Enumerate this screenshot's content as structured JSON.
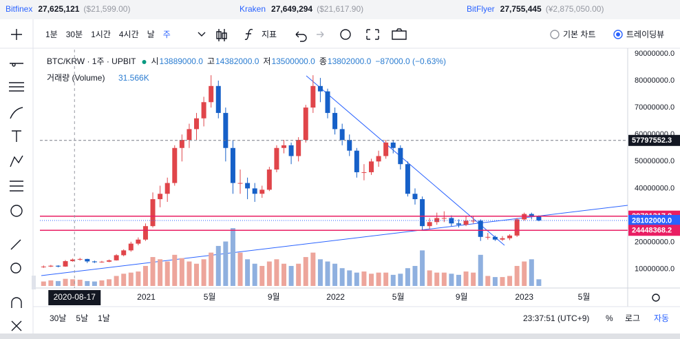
{
  "tickers": [
    {
      "exchange": "Bitfinex",
      "price": "27,625,121",
      "usd": "($21,599.00)"
    },
    {
      "exchange": "Kraken",
      "price": "27,649,294",
      "usd": "($21,617.90)"
    },
    {
      "exchange": "BitFlyer",
      "price": "27,755,445",
      "usd": "(¥2,875,050.00)"
    }
  ],
  "toolbar": {
    "intervals": [
      "1분",
      "30분",
      "1시간",
      "4시간",
      "날",
      "주"
    ],
    "active_interval": 5,
    "indicators": "지표",
    "chart_modes": [
      "기본 차트",
      "트레이딩뷰"
    ],
    "active_mode": 1
  },
  "chart_data": {
    "type": "candlestick",
    "symbol": "BTC/KRW · 1주 · UPBIT",
    "legend": [
      {
        "label": "시",
        "value": "13889000.0"
      },
      {
        "label": "고",
        "value": "14382000.0"
      },
      {
        "label": "저",
        "value": "13500000.0"
      },
      {
        "label": "종",
        "value": "13802000.0"
      }
    ],
    "change": "−87000.0 (−0.63%)",
    "volume_label": "거래량 (Volume)",
    "volume_value": "31.566K",
    "up_color": "#e0454a",
    "down_color": "#1660c8",
    "volume_up_color": "#eda59b",
    "volume_down_color": "#8fb0df",
    "open": [
      10800000,
      11000000,
      11300000,
      11000000,
      13000000,
      13600000,
      13800000,
      12900000,
      12600000,
      12800000,
      13300000,
      15200000,
      17000000,
      19500000,
      21000000,
      26000000,
      36000000,
      38000000,
      42000000,
      55000000,
      58000000,
      62000000,
      66000000,
      72000000,
      78000000,
      68000000,
      55000000,
      42000000,
      42000000,
      40000000,
      38000000,
      39500000,
      47000000,
      55000000,
      56000000,
      52000000,
      58000000,
      70000000,
      78000000,
      76000000,
      68000000,
      62000000,
      58000000,
      54000000,
      46000000,
      46000000,
      50000000,
      52000000,
      57000000,
      55000000,
      49000000,
      38000000,
      36000000,
      26000000,
      27500000,
      29000000,
      29000000,
      27000000,
      26500000,
      28000000,
      28000000,
      22000000,
      22000000,
      21000000,
      21500000,
      22500000,
      28500000,
      30500000,
      29500000
    ],
    "high": [
      11400000,
      11600000,
      11500000,
      13400000,
      14000000,
      14200000,
      13900000,
      13200000,
      13100000,
      13600000,
      15600000,
      17400000,
      20200000,
      21800000,
      27000000,
      38500000,
      41000000,
      44000000,
      56000000,
      60000000,
      64000000,
      68000000,
      74000000,
      82000000,
      80000000,
      70000000,
      58000000,
      47000000,
      44000000,
      42000000,
      41000000,
      48000000,
      56000000,
      58000000,
      57000000,
      59000000,
      71000000,
      82000000,
      81000000,
      77000000,
      70000000,
      64000000,
      60000000,
      55000000,
      49000000,
      51000000,
      54000000,
      58000000,
      58000000,
      56000000,
      50000000,
      40000000,
      37000000,
      29000000,
      31000000,
      31500000,
      30000000,
      28500000,
      29500000,
      29500000,
      28500000,
      23500000,
      22500000,
      22300000,
      23000000,
      29000000,
      31000000,
      31000000,
      30000000
    ],
    "low": [
      10500000,
      10800000,
      10700000,
      10900000,
      12800000,
      13200000,
      12300000,
      12300000,
      12400000,
      12600000,
      13200000,
      14800000,
      16500000,
      18900000,
      20500000,
      25500000,
      33000000,
      35000000,
      41000000,
      50000000,
      55000000,
      58000000,
      63000000,
      70000000,
      66000000,
      50000000,
      38000000,
      38000000,
      36000000,
      35000000,
      36500000,
      39000000,
      46000000,
      53000000,
      49000000,
      50000000,
      57000000,
      68000000,
      72000000,
      66000000,
      60000000,
      56000000,
      52000000,
      44000000,
      43000000,
      45000000,
      48000000,
      51000000,
      53000000,
      47000000,
      37000000,
      34000000,
      24500000,
      25000000,
      26500000,
      27500000,
      26000000,
      25500000,
      26000000,
      27000000,
      20500000,
      21000000,
      20500000,
      20500000,
      20800000,
      22000000,
      28000000,
      28500000,
      27800000
    ],
    "close": [
      11000000,
      11300000,
      11000000,
      13000000,
      13600000,
      13800000,
      12900000,
      12600000,
      12800000,
      13300000,
      15200000,
      17000000,
      19500000,
      21000000,
      26000000,
      36000000,
      38000000,
      42000000,
      55000000,
      58000000,
      62000000,
      66000000,
      72000000,
      78000000,
      68000000,
      55000000,
      42000000,
      42000000,
      40000000,
      38000000,
      39500000,
      47000000,
      55000000,
      56000000,
      52000000,
      58000000,
      70000000,
      78000000,
      76000000,
      68000000,
      62000000,
      58000000,
      54000000,
      46000000,
      46000000,
      50000000,
      52000000,
      57000000,
      55000000,
      49000000,
      38000000,
      36000000,
      26000000,
      27500000,
      29000000,
      29000000,
      27000000,
      26500000,
      28000000,
      28000000,
      22000000,
      22000000,
      21000000,
      21500000,
      22500000,
      28500000,
      30500000,
      29500000,
      28102000
    ],
    "volume": [
      20,
      25,
      22,
      32,
      30,
      28,
      22,
      20,
      25,
      30,
      45,
      55,
      60,
      65,
      90,
      130,
      120,
      110,
      140,
      125,
      110,
      100,
      120,
      150,
      180,
      200,
      260,
      150,
      120,
      100,
      90,
      110,
      120,
      100,
      90,
      100,
      130,
      150,
      120,
      110,
      100,
      80,
      70,
      60,
      65,
      55,
      60,
      60,
      50,
      55,
      80,
      90,
      160,
      70,
      60,
      60,
      55,
      50,
      65,
      60,
      140,
      45,
      40,
      40,
      45,
      90,
      110,
      120,
      30
    ],
    "vlim": [
      0,
      310
    ],
    "xlim": [
      -0.5,
      80.2
    ],
    "xticks": [
      {
        "value": 14.1,
        "label": "2021"
      },
      {
        "value": 22.8,
        "label": "5월"
      },
      {
        "value": 31.6,
        "label": "9월"
      },
      {
        "value": 40.1,
        "label": "2022"
      },
      {
        "value": 48.7,
        "label": "5월"
      },
      {
        "value": 57.4,
        "label": "9월"
      },
      {
        "value": 66.0,
        "label": "2023"
      },
      {
        "value": 74.2,
        "label": "5월"
      }
    ],
    "crosshair": {
      "x": 4.25,
      "label": "2020-08-17"
    },
    "ylim": [
      3800000,
      91500000
    ],
    "yticks": [
      {
        "value": 10000000,
        "label": "10000000.0"
      },
      {
        "value": 20000000,
        "label": "20000000.0"
      },
      {
        "value": 30000000,
        "label": "30000000.0"
      },
      {
        "value": 40000000,
        "label": "40000000.0"
      },
      {
        "value": 50000000,
        "label": "50000000.0"
      },
      {
        "value": 60000000,
        "label": "60000000.0"
      },
      {
        "value": 70000000,
        "label": "70000000.0"
      },
      {
        "value": 80000000,
        "label": "80000000.0"
      },
      {
        "value": 90000000,
        "label": "90000000.0"
      }
    ],
    "grid": false,
    "levels": [
      {
        "value": 57797552.3,
        "label": "57797552.3",
        "color": "#131722",
        "style": "dashed"
      },
      {
        "value": 29701317.8,
        "label": "29701317.8",
        "color": "#e91e63",
        "style": "solid"
      },
      {
        "value": 28102000,
        "label": "28102000.0",
        "color": "#2962ff",
        "style": "dotted"
      },
      {
        "value": 24448368.2,
        "label": "24448368.2",
        "color": "#e91e63",
        "style": "solid"
      }
    ]
  },
  "footer": {
    "ranges": [
      "30날",
      "5날",
      "1날"
    ],
    "clock": "23:37:51 (UTC+9)",
    "scale_buttons": [
      "%",
      "로그",
      "자동"
    ],
    "active_scale": 2
  }
}
